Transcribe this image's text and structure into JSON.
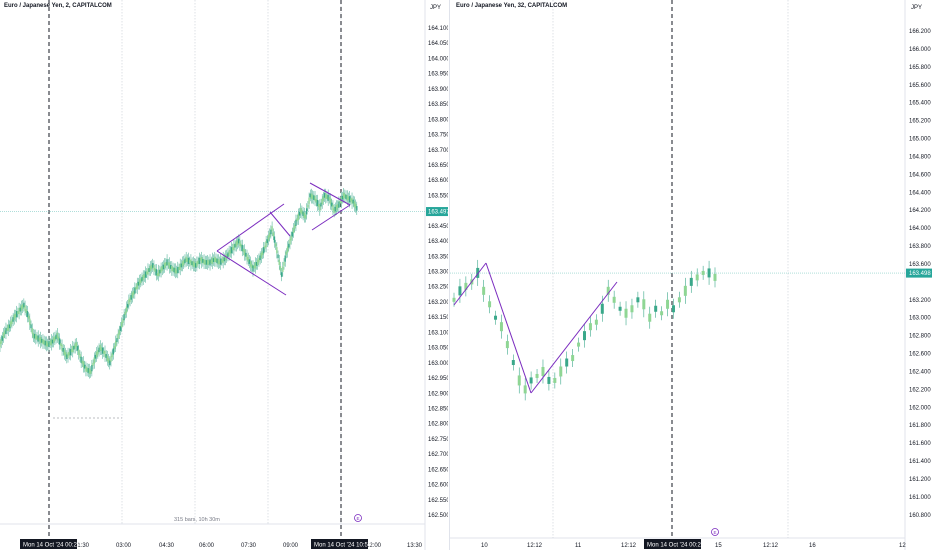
{
  "colors": {
    "up": "#26a69a",
    "down": "#2a9d8f",
    "candle": "#3aa88a",
    "candle_light": "#8fd694",
    "pattern": "#7b2cbf",
    "price_label_bg": "#26a69a",
    "price_line": "#80cbc4",
    "grid": "#d1d4dc",
    "axis_text": "#131722"
  },
  "left_pane": {
    "title": "Euro / Japanese Yen, 2, CAPITALCOM",
    "currency": "JPY",
    "price_label": "163.497",
    "bars_info": "315 bars, 10h 30m",
    "event_icon": "E",
    "date_badge_1": "Mon 14 Oct '24",
    "date_badge_1_time": "00:20",
    "date_badge_2": "Mon 14 Oct '24",
    "date_badge_2_time": "10:50",
    "time_labels": [
      "01:30",
      "03:00",
      "04:30",
      "06:00",
      "07:30",
      "09:00",
      "12:00",
      "13:30"
    ],
    "price_ticks": [
      "164.100",
      "164.050",
      "164.000",
      "163.950",
      "163.900",
      "163.850",
      "163.800",
      "163.750",
      "163.700",
      "163.650",
      "163.600",
      "163.550",
      "163.450",
      "163.400",
      "163.350",
      "163.300",
      "163.250",
      "163.200",
      "163.150",
      "163.100",
      "163.050",
      "163.000",
      "162.950",
      "162.900",
      "162.850",
      "162.800",
      "162.750",
      "162.700",
      "162.650",
      "162.600",
      "162.550",
      "162.500"
    ]
  },
  "right_pane": {
    "title": "Euro / Japanese Yen, 32, CAPITALCOM",
    "currency": "JPY",
    "price_label": "163.498",
    "event_icon": "E",
    "date_badge": "Mon 14 Oct '24",
    "date_badge_time": "00:28",
    "time_labels": [
      "10",
      "12:12",
      "11",
      "12:12",
      "12:12",
      "15",
      "12:12",
      "16",
      "12"
    ],
    "price_ticks": [
      "166.200",
      "166.000",
      "165.800",
      "165.600",
      "165.400",
      "165.200",
      "165.000",
      "164.800",
      "164.600",
      "164.400",
      "164.200",
      "164.000",
      "163.800",
      "163.600",
      "163.200",
      "163.000",
      "162.800",
      "162.600",
      "162.400",
      "162.200",
      "162.000",
      "161.800",
      "161.600",
      "161.400",
      "161.200",
      "161.000",
      "160.800"
    ]
  },
  "chart_data": [
    {
      "type": "line",
      "title": "Euro / Japanese Yen, 2, CAPITALCOM",
      "ylabel": "JPY",
      "ylim": [
        162.47,
        164.15
      ],
      "last_price": 163.497,
      "series": [
        {
          "values": [
            163.06,
            163.1,
            163.12,
            163.15,
            163.17,
            163.19,
            163.15,
            163.09,
            163.08,
            163.07,
            163.06,
            163.07,
            163.09,
            163.05,
            163.02,
            163.04,
            163.06,
            163.01,
            162.98,
            162.97,
            163.02,
            163.05,
            163.03,
            163.0,
            163.05,
            163.1,
            163.15,
            163.2,
            163.23,
            163.26,
            163.28,
            163.3,
            163.32,
            163.29,
            163.31,
            163.33,
            163.31,
            163.3,
            163.32,
            163.34,
            163.33,
            163.32,
            163.34,
            163.33,
            163.33,
            163.34,
            163.33,
            163.34,
            163.36,
            163.38,
            163.4,
            163.37,
            163.34,
            163.31,
            163.33,
            163.36,
            163.4,
            163.44,
            163.37,
            163.29,
            163.36,
            163.41,
            163.46,
            163.5,
            163.48,
            163.55,
            163.54,
            163.51,
            163.55,
            163.54,
            163.5,
            163.52,
            163.55,
            163.54,
            163.53,
            163.5
          ]
        }
      ],
      "annotations": [
        "Mon 14 Oct '24 00:20",
        "Mon 14 Oct '24 10:50",
        "315 bars, 10h 30m"
      ]
    },
    {
      "type": "line",
      "title": "Euro / Japanese Yen, 32, CAPITALCOM",
      "ylabel": "JPY",
      "ylim": [
        160.7,
        166.35
      ],
      "last_price": 163.498,
      "series": [
        {
          "values": [
            163.2,
            163.3,
            163.35,
            163.4,
            163.5,
            163.3,
            163.15,
            163.0,
            162.9,
            162.7,
            162.5,
            162.3,
            162.2,
            162.3,
            162.35,
            162.4,
            162.3,
            162.3,
            162.4,
            162.5,
            162.55,
            162.7,
            162.8,
            162.9,
            162.95,
            163.1,
            163.3,
            163.2,
            163.1,
            163.05,
            163.1,
            163.2,
            163.15,
            163.0,
            163.1,
            163.05,
            163.15,
            163.1,
            163.2,
            163.3,
            163.4,
            163.45,
            163.5,
            163.5,
            163.45
          ]
        }
      ],
      "annotations": [
        "Mon 14 Oct '24 00:28"
      ]
    }
  ]
}
